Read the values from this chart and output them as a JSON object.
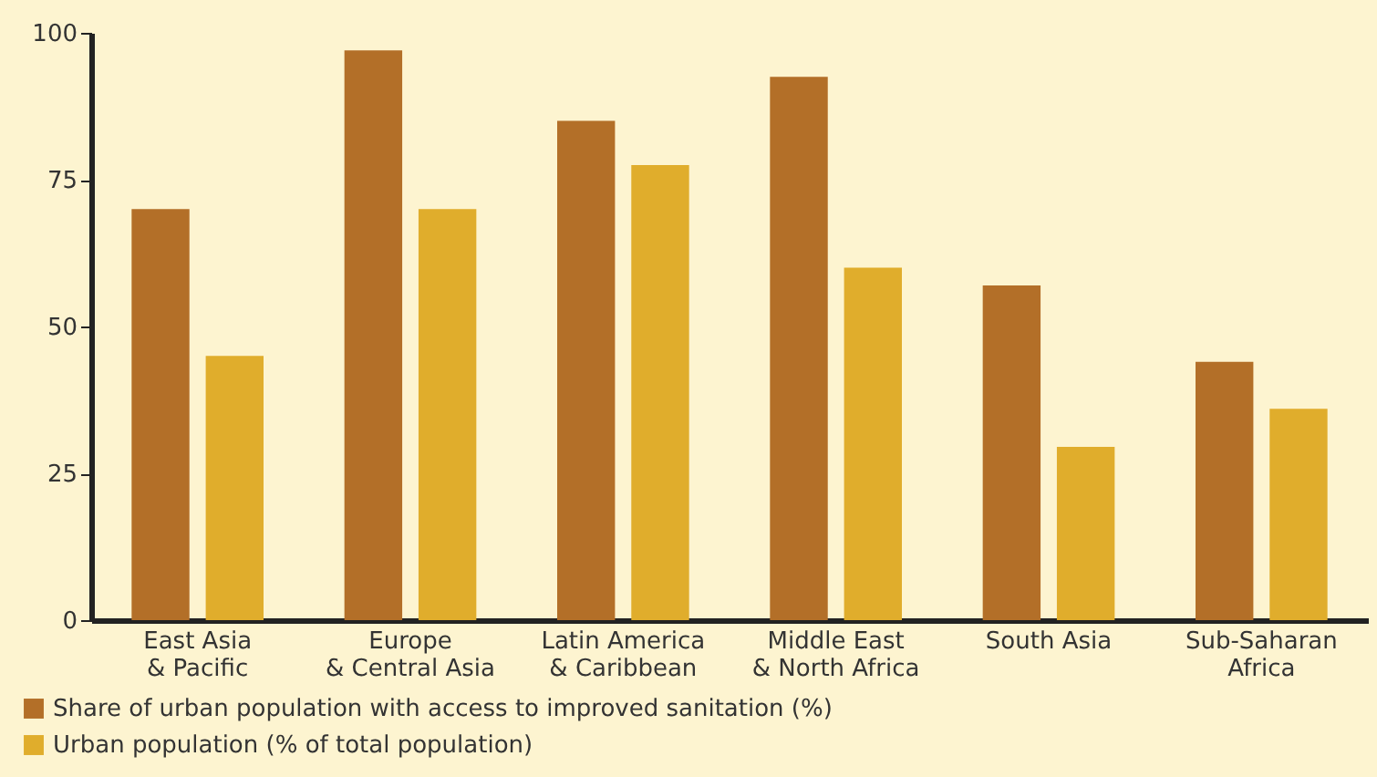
{
  "chart_data": {
    "type": "bar",
    "categories": [
      "East Asia\n& Pacific",
      "Europe\n& Central Asia",
      "Latin America\n& Caribbean",
      "Middle East\n& North Africa",
      "South Asia",
      "Sub-Saharan\nAfrica"
    ],
    "series": [
      {
        "name": "Share of urban population with access to improved sanitation (%)",
        "color": "#b36f28",
        "values": [
          70,
          97,
          85,
          92.5,
          57,
          44
        ]
      },
      {
        "name": "Urban population (% of total population)",
        "color": "#e0ad2c",
        "values": [
          45,
          70,
          77.5,
          60,
          29.5,
          36
        ]
      }
    ],
    "ylim": [
      0,
      100
    ],
    "yticks": [
      0,
      25,
      50,
      75,
      100
    ],
    "grid": false,
    "legend": "bottom left"
  }
}
